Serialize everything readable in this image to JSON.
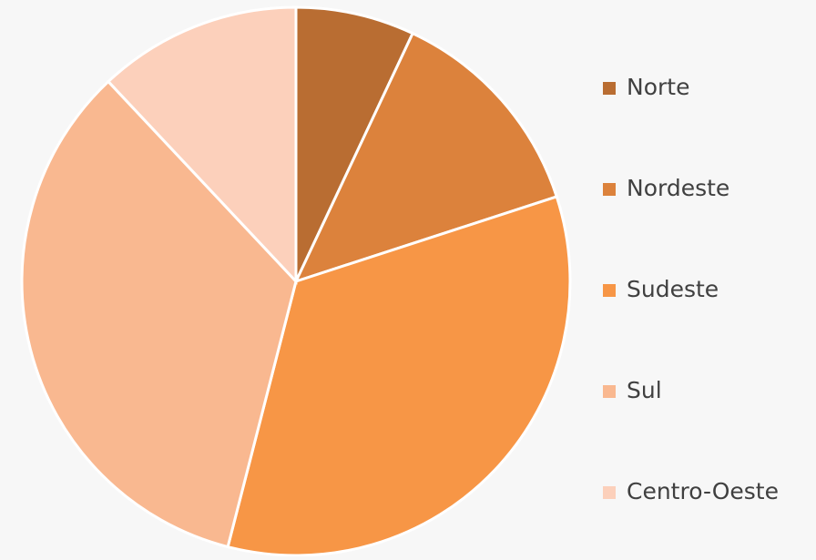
{
  "chart_data": {
    "type": "pie",
    "categories": [
      "Norte",
      "Nordeste",
      "Sudeste",
      "Sul",
      "Centro-Oeste"
    ],
    "values": [
      7,
      13,
      34,
      34,
      12
    ],
    "colors": [
      "#b96d32",
      "#dc823c",
      "#f79646",
      "#f9b890",
      "#fcd0bb"
    ],
    "legend": "right"
  }
}
